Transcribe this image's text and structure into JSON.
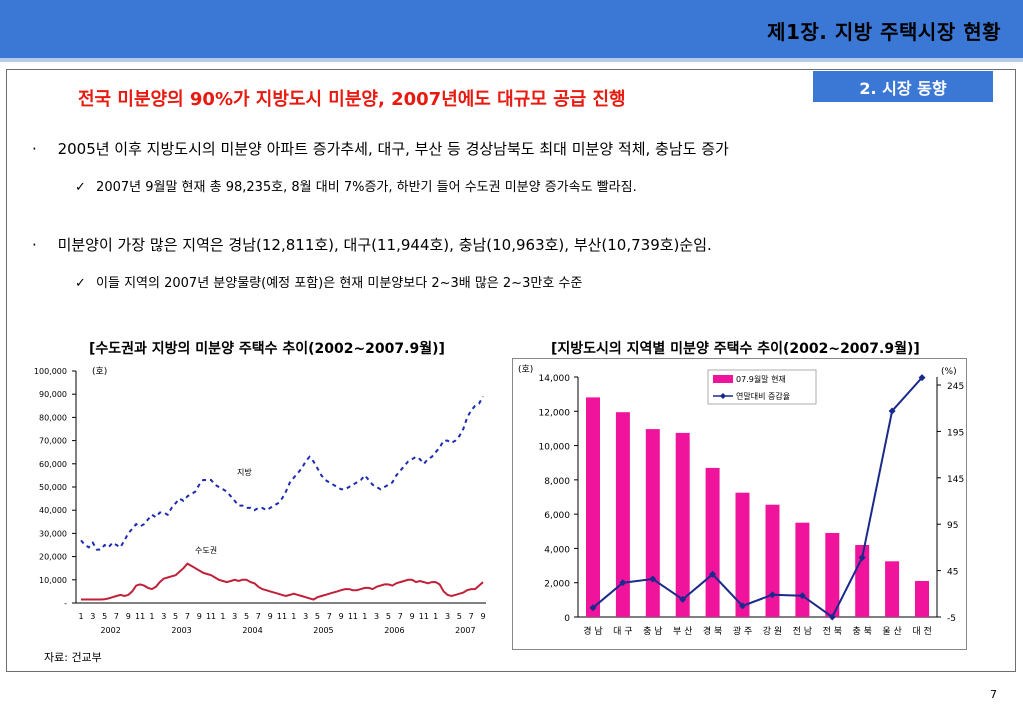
{
  "header": {
    "title": "제1장. 지방 주택시장 현황"
  },
  "badge": "2. 시장    동향",
  "headline": "전국 미분양의 90%가 지방도시 미분양, 2007년에도 대규모 공급 진행",
  "bullets": [
    {
      "mark": "·",
      "text": "2005년 이후 지방도시의 미분양 아파트 증가추세, 대구, 부산 등 경상남북도 최대 미분양 적체, 충남도 증가",
      "sub": {
        "mark": "✓",
        "text": "2007년 9월말 현재 총 98,235호, 8월 대비 7%증가, 하반기 들어 수도권 미분양 증가속도 빨라짐."
      }
    },
    {
      "mark": "·",
      "text": "미분양이 가장 많은 지역은 경남(12,811호), 대구(11,944호), 충남(10,963호), 부산(10,739호)순임.",
      "sub": {
        "mark": "✓",
        "text": "이들 지역의 2007년 분양물량(예정 포함)은 현재 미분양보다 2~3배 많은 2~3만호 수준"
      }
    }
  ],
  "source": "자료: 건교부",
  "page_number": "7",
  "chart_data": [
    {
      "type": "line",
      "title": "[수도권과 지방의 미분양 주택수 추이(2002~2007.9월)]",
      "unit_label": "(호)",
      "x_tick_labels": [
        "1",
        "3",
        "5",
        "7",
        "9",
        "11",
        "1",
        "3",
        "5",
        "7",
        "9",
        "11",
        "1",
        "3",
        "5",
        "7",
        "9",
        "11",
        "1",
        "3",
        "5",
        "7",
        "9",
        "11",
        "1",
        "3",
        "5",
        "7",
        "9",
        "11",
        "1",
        "3",
        "5",
        "7",
        "9"
      ],
      "year_labels": [
        "2002",
        "2003",
        "2004",
        "2005",
        "2006",
        "2007"
      ],
      "y_tick_labels": [
        "-",
        "10,000",
        "20,000",
        "30,000",
        "40,000",
        "50,000",
        "60,000",
        "70,000",
        "80,000",
        "90,000",
        "100,000"
      ],
      "ylim": [
        0,
        100000
      ],
      "series": [
        {
          "name": "지방",
          "style": "dashed",
          "color": "#1c2bb0",
          "values": [
            27000,
            25000,
            24000,
            26000,
            23000,
            23000,
            25000,
            24000,
            26000,
            25000,
            24000,
            27000,
            30000,
            32000,
            34000,
            33000,
            34000,
            36000,
            38000,
            37000,
            39000,
            39000,
            38000,
            41000,
            43000,
            45000,
            44000,
            46000,
            47000,
            48000,
            51000,
            53000,
            53000,
            53000,
            51000,
            50000,
            49000,
            48000,
            46000,
            44000,
            42000,
            42000,
            41000,
            41000,
            40000,
            41000,
            41000,
            40000,
            41000,
            42000,
            43000,
            45000,
            48000,
            52000,
            54000,
            56000,
            58000,
            61000,
            63000,
            61000,
            58000,
            55000,
            53000,
            52000,
            51000,
            50000,
            49000,
            49000,
            50000,
            51000,
            52000,
            53000,
            55000,
            53000,
            51000,
            50000,
            49000,
            50000,
            51000,
            52000,
            55000,
            57000,
            59000,
            61000,
            62000,
            63000,
            62000,
            60000,
            62000,
            63000,
            65000,
            67000,
            70000,
            70000,
            69000,
            70000,
            72000,
            75000,
            80000,
            83000,
            85000,
            86000,
            89000
          ]
        },
        {
          "name": "수도권",
          "style": "solid",
          "color": "#c0203a",
          "values": [
            1500,
            1500,
            1500,
            1500,
            1500,
            1500,
            1600,
            2000,
            2500,
            3000,
            3500,
            3000,
            3500,
            5000,
            7500,
            8000,
            7500,
            6500,
            6000,
            7000,
            9000,
            10500,
            11000,
            11500,
            12000,
            13500,
            15000,
            17000,
            16000,
            15000,
            14000,
            13000,
            12500,
            12000,
            11000,
            10000,
            9500,
            9000,
            9500,
            10000,
            9500,
            10000,
            10000,
            9000,
            8500,
            7000,
            6000,
            5500,
            5000,
            4500,
            4000,
            3500,
            3000,
            3500,
            4000,
            3500,
            3000,
            2500,
            2000,
            1500,
            2500,
            3000,
            3500,
            4000,
            4500,
            5000,
            5500,
            6000,
            6000,
            5500,
            5500,
            6000,
            6500,
            6500,
            6000,
            7000,
            7500,
            8000,
            8000,
            7500,
            8500,
            9000,
            9500,
            10000,
            10000,
            9000,
            9500,
            9000,
            8500,
            9000,
            9000,
            8000,
            5000,
            3500,
            3000,
            3500,
            4000,
            4500,
            5500,
            6000,
            6000,
            7500,
            9000
          ]
        }
      ],
      "annotations": [
        "지방",
        "수도권"
      ]
    },
    {
      "type": "bar",
      "title": "[지방도시의 지역별 미분양 주택수 추이(2002~2007.9월)]",
      "left_unit": "(호)",
      "right_unit": "(%)",
      "categories": [
        "경 남",
        "대 구",
        "충 남",
        "부 산",
        "경 북",
        "광 주",
        "강 원",
        "전 남",
        "전 북",
        "충 북",
        "울 산",
        "대 전"
      ],
      "y_tick_labels": [
        "0",
        "2,000",
        "4,000",
        "6,000",
        "8,000",
        "10,000",
        "12,000",
        "14,000"
      ],
      "ylim": [
        0,
        14000
      ],
      "y2_tick_labels": [
        "-5",
        "45",
        "95",
        "145",
        "195",
        "245"
      ],
      "y2lim": [
        -5,
        245
      ],
      "series": [
        {
          "name": "07.9월말 현재",
          "type": "bar",
          "color": "#f0149c",
          "values": [
            12811,
            11944,
            10963,
            10739,
            8700,
            7250,
            6550,
            5500,
            4900,
            4200,
            3250,
            2100
          ]
        },
        {
          "name": "연말대비 증감율",
          "type": "line",
          "axis": "right",
          "color": "#1a2a8c",
          "values": [
            5,
            32,
            36,
            14,
            41,
            7,
            19,
            18,
            -5,
            59,
            217,
            253
          ]
        }
      ]
    }
  ]
}
